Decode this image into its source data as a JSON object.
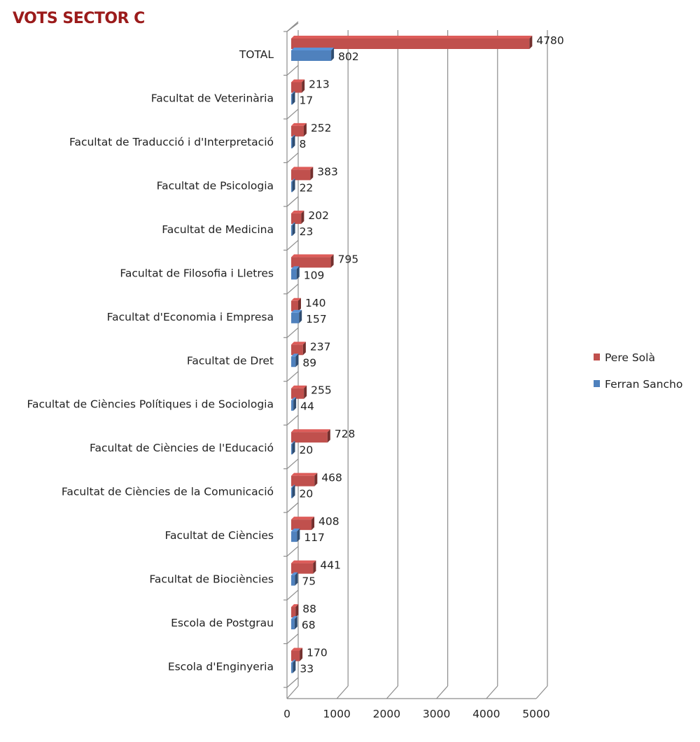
{
  "chart_data": {
    "type": "bar",
    "orientation": "horizontal",
    "title": "VOTS SECTOR C",
    "categories": [
      "TOTAL",
      "Facultat de Veterinària",
      "Facultat de Traducció i d'Interpretació",
      "Facultat de Psicologia",
      "Facultat de Medicina",
      "Facultat de Filosofia i Lletres",
      "Facultat d'Economia i Empresa",
      "Facultat de Dret",
      "Facultat de Ciències Polítiques i de Sociologia",
      "Facultat de Ciències de l'Educació",
      "Facultat de Ciències de la Comunicació",
      "Facultat de Ciències",
      "Facultat de Biociències",
      "Escola de Postgrau",
      "Escola d'Enginyeria"
    ],
    "series": [
      {
        "name": "Pere Solà",
        "color": "#C0504D",
        "values": [
          4780,
          213,
          252,
          383,
          202,
          795,
          140,
          237,
          255,
          728,
          468,
          408,
          441,
          88,
          170
        ]
      },
      {
        "name": "Ferran Sancho",
        "color": "#4F81BD",
        "values": [
          802,
          17,
          8,
          22,
          23,
          109,
          157,
          89,
          44,
          20,
          20,
          117,
          75,
          68,
          33
        ]
      }
    ],
    "xlim": [
      0,
      5000
    ],
    "xticks": [
      0,
      1000,
      2000,
      3000,
      4000,
      5000
    ],
    "grid": true,
    "style": "3d",
    "legend_position": "right"
  }
}
